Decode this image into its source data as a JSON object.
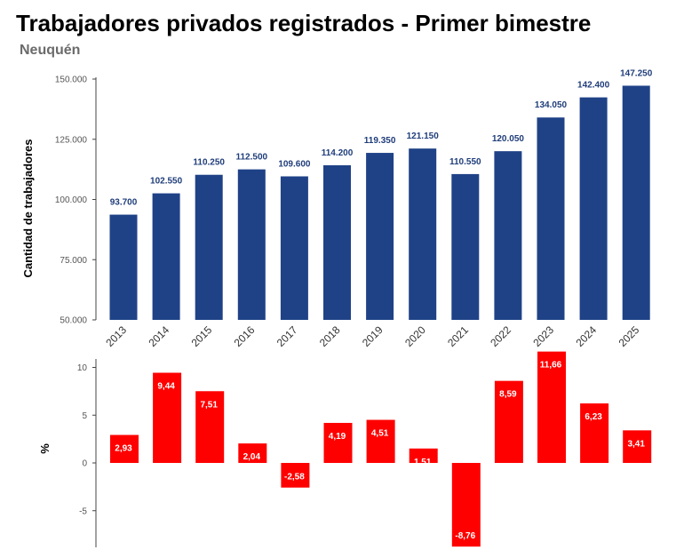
{
  "title": "Trabajadores privados registrados - Primer bimestre",
  "subtitle": "Neuquén",
  "colors": {
    "top_bars": "#1f4287",
    "bottom_bars": "#ff0000",
    "top_label": "#1f3d7a",
    "axis": "#444444"
  },
  "chart_data": [
    {
      "type": "bar",
      "categories": [
        "2013",
        "2014",
        "2015",
        "2016",
        "2017",
        "2018",
        "2019",
        "2020",
        "2021",
        "2022",
        "2023",
        "2024",
        "2025"
      ],
      "values": [
        93700,
        102550,
        110250,
        112500,
        109600,
        114200,
        119350,
        121150,
        110550,
        120050,
        134050,
        142400,
        147250
      ],
      "value_labels": [
        "93.700",
        "102.550",
        "110.250",
        "112.500",
        "109.600",
        "114.200",
        "119.350",
        "121.150",
        "110.550",
        "120.050",
        "134.050",
        "142.400",
        "147.250"
      ],
      "ylabel": "Cantidad de trabajadores",
      "ylim": [
        50000,
        150000
      ],
      "yticks": [
        50000,
        75000,
        100000,
        125000,
        150000
      ],
      "ytick_labels": [
        "50.000",
        "75.000",
        "100.000",
        "125.000",
        "150.000"
      ],
      "grid": false
    },
    {
      "type": "bar",
      "categories": [
        "2013",
        "2014",
        "2015",
        "2016",
        "2017",
        "2018",
        "2019",
        "2020",
        "2021",
        "2022",
        "2023",
        "2024",
        "2025"
      ],
      "values": [
        2.93,
        9.44,
        7.51,
        2.04,
        -2.58,
        4.19,
        4.51,
        1.51,
        -8.76,
        8.59,
        11.66,
        6.23,
        3.41
      ],
      "value_labels": [
        "2,93",
        "9,44",
        "7,51",
        "2,04",
        "-2,58",
        "4,19",
        "4,51",
        "1,51",
        "-8,76",
        "8,59",
        "11,66",
        "6,23",
        "3,41"
      ],
      "ylabel": "%",
      "ylim": [
        -9,
        12
      ],
      "yticks": [
        -5,
        0,
        5,
        10
      ],
      "ytick_labels": [
        "-5",
        "0",
        "5",
        "10"
      ],
      "grid": false
    }
  ]
}
